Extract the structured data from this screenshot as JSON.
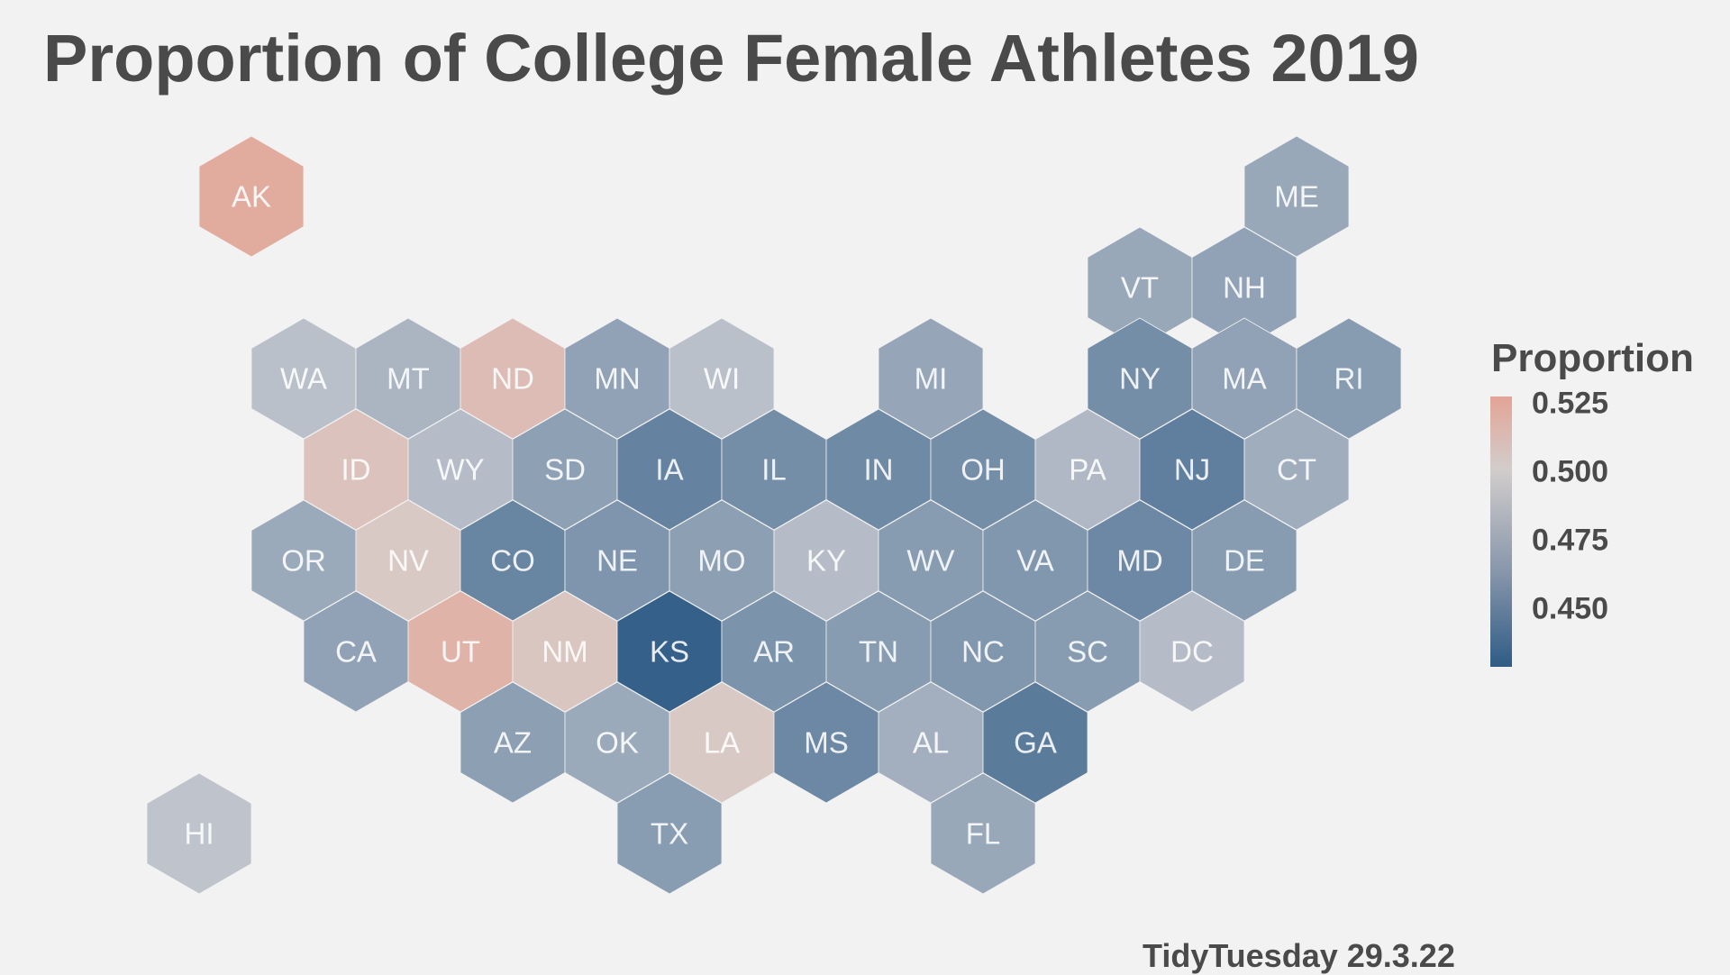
{
  "title": "Proportion of College Female Athletes 2019",
  "caption": "TidyTuesday 29.3.22",
  "legend": {
    "title": "Proportion",
    "ticks": [
      "0.525",
      "0.500",
      "0.475",
      "0.450"
    ]
  },
  "scale": {
    "domain": [
      0.436,
      0.533
    ],
    "stops": [
      {
        "value": 0.436,
        "color": "#2f5c86"
      },
      {
        "value": 0.495,
        "color": "#c7c9d0"
      },
      {
        "value": 0.505,
        "color": "#d9cac6"
      },
      {
        "value": 0.533,
        "color": "#e3a495"
      }
    ]
  },
  "chart_data": {
    "type": "hexbin-map",
    "title": "Proportion of College Female Athletes 2019",
    "value_label": "Proportion",
    "states": [
      {
        "abbr": "AK",
        "value": 0.528
      },
      {
        "abbr": "ME",
        "value": 0.477
      },
      {
        "abbr": "VT",
        "value": 0.477
      },
      {
        "abbr": "NH",
        "value": 0.474
      },
      {
        "abbr": "WA",
        "value": 0.49
      },
      {
        "abbr": "MT",
        "value": 0.484
      },
      {
        "abbr": "ND",
        "value": 0.515
      },
      {
        "abbr": "MN",
        "value": 0.474
      },
      {
        "abbr": "WI",
        "value": 0.49
      },
      {
        "abbr": "MI",
        "value": 0.476
      },
      {
        "abbr": "NY",
        "value": 0.463
      },
      {
        "abbr": "MA",
        "value": 0.474
      },
      {
        "abbr": "RI",
        "value": 0.47
      },
      {
        "abbr": "ID",
        "value": 0.511
      },
      {
        "abbr": "WY",
        "value": 0.488
      },
      {
        "abbr": "SD",
        "value": 0.473
      },
      {
        "abbr": "IA",
        "value": 0.457
      },
      {
        "abbr": "IL",
        "value": 0.463
      },
      {
        "abbr": "IN",
        "value": 0.461
      },
      {
        "abbr": "OH",
        "value": 0.463
      },
      {
        "abbr": "PA",
        "value": 0.486
      },
      {
        "abbr": "NJ",
        "value": 0.455
      },
      {
        "abbr": "CT",
        "value": 0.48
      },
      {
        "abbr": "OR",
        "value": 0.478
      },
      {
        "abbr": "NV",
        "value": 0.506
      },
      {
        "abbr": "CO",
        "value": 0.458
      },
      {
        "abbr": "NE",
        "value": 0.467
      },
      {
        "abbr": "MO",
        "value": 0.472
      },
      {
        "abbr": "KY",
        "value": 0.488
      },
      {
        "abbr": "WV",
        "value": 0.47
      },
      {
        "abbr": "VA",
        "value": 0.468
      },
      {
        "abbr": "MD",
        "value": 0.46
      },
      {
        "abbr": "DE",
        "value": 0.47
      },
      {
        "abbr": "CA",
        "value": 0.474
      },
      {
        "abbr": "UT",
        "value": 0.522
      },
      {
        "abbr": "NM",
        "value": 0.508
      },
      {
        "abbr": "KS",
        "value": 0.438
      },
      {
        "abbr": "AR",
        "value": 0.466
      },
      {
        "abbr": "TN",
        "value": 0.47
      },
      {
        "abbr": "NC",
        "value": 0.468
      },
      {
        "abbr": "SC",
        "value": 0.47
      },
      {
        "abbr": "DC",
        "value": 0.488
      },
      {
        "abbr": "AZ",
        "value": 0.472
      },
      {
        "abbr": "OK",
        "value": 0.478
      },
      {
        "abbr": "LA",
        "value": 0.506
      },
      {
        "abbr": "MS",
        "value": 0.46
      },
      {
        "abbr": "AL",
        "value": 0.481
      },
      {
        "abbr": "GA",
        "value": 0.453
      },
      {
        "abbr": "TX",
        "value": 0.471
      },
      {
        "abbr": "FL",
        "value": 0.477
      },
      {
        "abbr": "HI",
        "value": 0.492
      }
    ]
  }
}
